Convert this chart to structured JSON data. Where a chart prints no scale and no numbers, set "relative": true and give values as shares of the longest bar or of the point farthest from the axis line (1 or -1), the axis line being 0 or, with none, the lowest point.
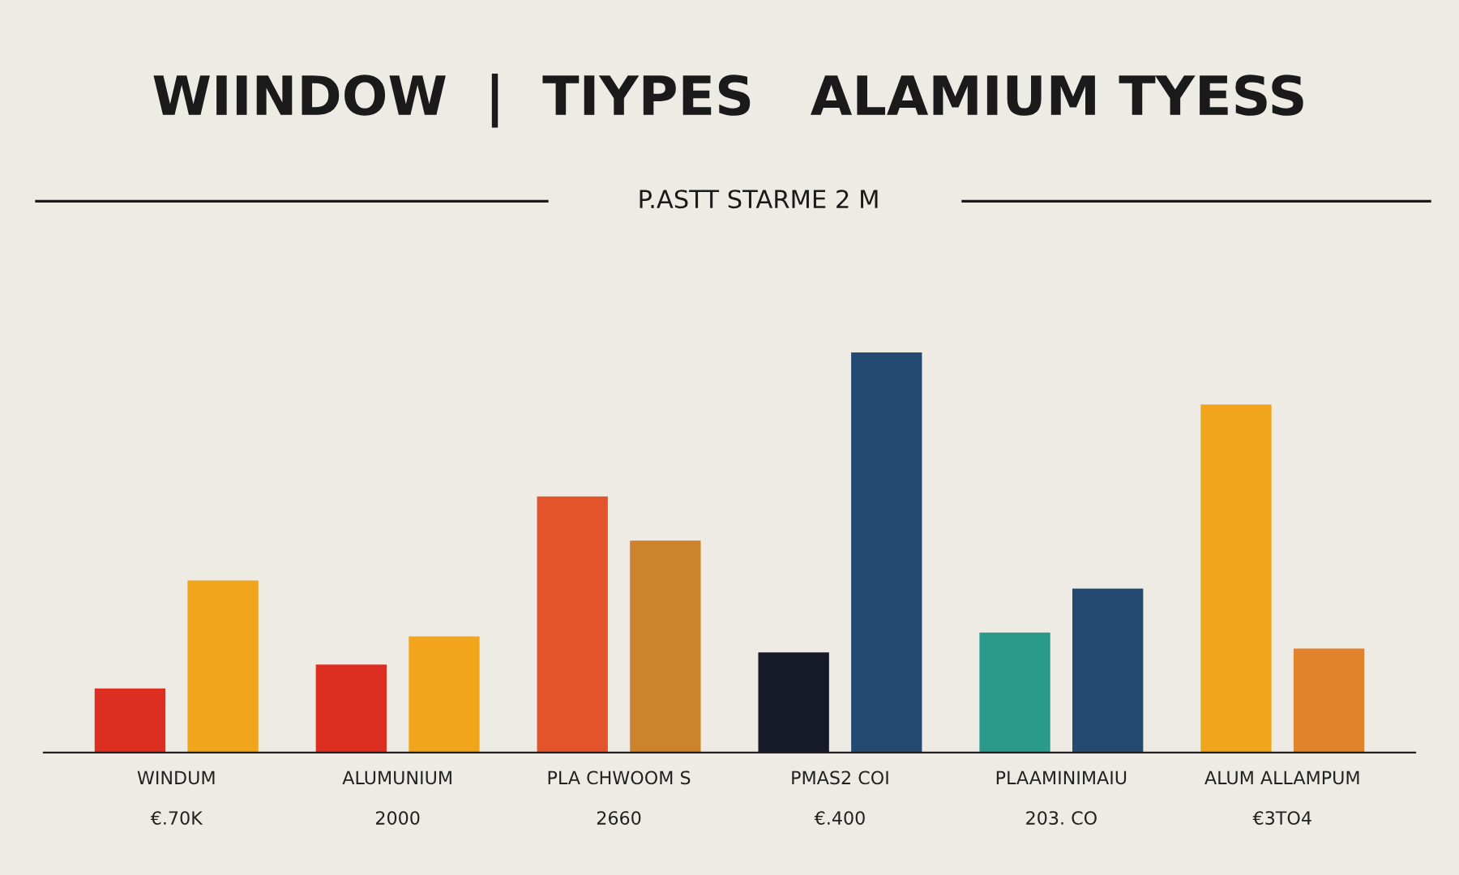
{
  "chart_data": {
    "type": "bar",
    "title": "WIINDOW  |  TIYPES   ALAMIUM TYESS",
    "subtitle": "P.ASTT STARME 2 M",
    "categories": [
      "WINDUM\n\n€.70K",
      "ALUMUNIUM\n\n2000",
      "PLA CHWOOM S\n\n2660",
      "PMAS2 COI\n\n€.400",
      "PLAAMINIMAIU\n\n203. CO",
      "ALUM ALLAMPUM\n\n€3TO4"
    ],
    "relative": true,
    "series": [
      {
        "colors": [
          "#dc2f21",
          "#dc2f21",
          "#e4542a",
          "#151a26",
          "#2a9a8c",
          "#f0a51c"
        ],
        "values": [
          0.16,
          0.22,
          0.64,
          0.25,
          0.3,
          0.87
        ]
      },
      {
        "colors": [
          "#f0a51c",
          "#f0a51c",
          "#cc832c",
          "#254a72",
          "#254a72",
          "#e0832a"
        ],
        "values": [
          0.43,
          0.29,
          0.53,
          1.0,
          0.41,
          0.26
        ]
      }
    ],
    "legend": false
  }
}
